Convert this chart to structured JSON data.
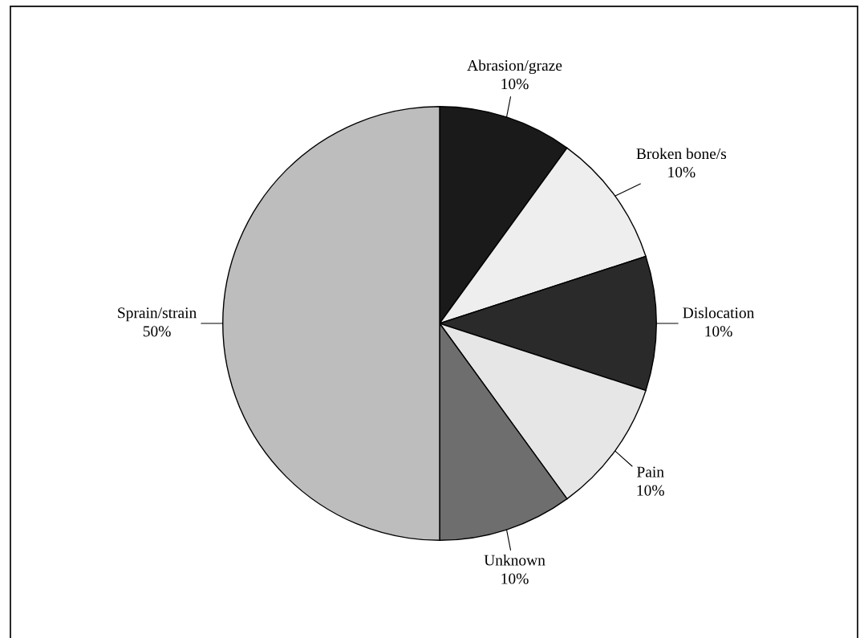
{
  "chart_data": {
    "type": "pie",
    "categories": [
      "Abrasion/graze",
      "Broken bone/s",
      "Dislocation",
      "Pain",
      "Unknown",
      "Sprain/strain"
    ],
    "values": [
      10,
      10,
      10,
      10,
      10,
      50
    ],
    "colors": [
      "#1a1a1a",
      "#eeeeee",
      "#2a2a2a",
      "#e6e6e6",
      "#6e6e6e",
      "#bdbdbd"
    ],
    "value_labels": [
      "10%",
      "10%",
      "10%",
      "10%",
      "10%",
      "50%"
    ],
    "legend": false
  }
}
